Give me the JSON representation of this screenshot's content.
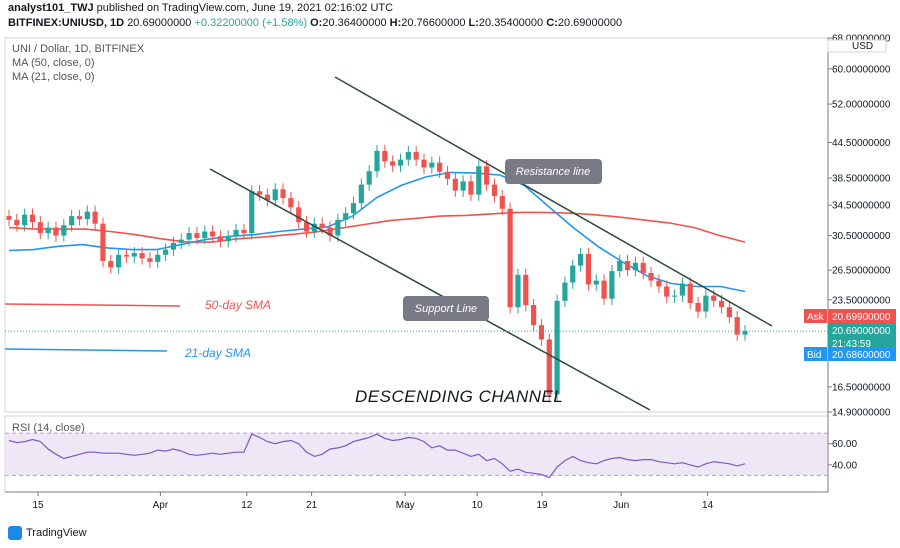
{
  "header": {
    "author": "analyst101_TWJ",
    "published": "published on TradingView.com, June 19, 2021 02:16:02 UTC",
    "symbol": "BITFINEX:UNIUSD, 1D",
    "last": "20.69000000",
    "change": "+0.32200000 (+1.58%)",
    "ohlc_o_label": "O:",
    "ohlc_o": "20.36400000",
    "ohlc_h_label": "H:",
    "ohlc_h": "20.76600000",
    "ohlc_l_label": "L:",
    "ohlc_l": "20.35400000",
    "ohlc_c_label": "C:",
    "ohlc_c": "20.69000000"
  },
  "legend": {
    "title": "UNI / Dollar, 1D, BITFINEX",
    "ma50": "MA (50, close, 0)",
    "ma21": "MA (21, close, 0)",
    "rsi": "RSI (14, close)"
  },
  "annotations": {
    "resistance": "Resistance line",
    "support": "Support Line",
    "sma50": "50-day SMA",
    "sma21": "21-day SMA",
    "channel": "DESCENDING CHANNEL"
  },
  "price_tags": {
    "ask_label": "Ask",
    "ask": "20.69900000",
    "last": "20.69000000",
    "countdown": "21:43:59",
    "bid_label": "Bid",
    "bid": "20.68600000",
    "currency": "USD"
  },
  "footer": {
    "brand": "TradingView"
  },
  "colors": {
    "up": "#26a69a",
    "down": "#ef5350",
    "ma50": "#ef5350",
    "ma21": "#2196f3",
    "rsi": "#7e57c2",
    "channel": "#2e4a3e",
    "bid": "#2196f3"
  },
  "chart_data": {
    "type": "candlestick",
    "y_scale": "log",
    "ylim": [
      14.9,
      68.0
    ],
    "yticks": [
      "68.00000000",
      "60.00000000",
      "52.00000000",
      "44.50000000",
      "38.50000000",
      "34.50000000",
      "30.50000000",
      "26.50000000",
      "23.50000000",
      "16.50000000",
      "14.90000000"
    ],
    "xticks": [
      "15",
      "Apr",
      "12",
      "21",
      "May",
      "10",
      "19",
      "Jun",
      "14"
    ],
    "candles": [
      [
        33.0,
        32.5
      ],
      [
        32.5,
        31.8
      ],
      [
        31.8,
        33.2
      ],
      [
        33.2,
        32.2
      ],
      [
        32.2,
        30.8
      ],
      [
        30.8,
        31.5
      ],
      [
        31.5,
        30.5
      ],
      [
        30.5,
        31.8
      ],
      [
        31.8,
        33.0
      ],
      [
        33.0,
        32.6
      ],
      [
        32.6,
        33.6
      ],
      [
        33.6,
        32.0
      ],
      [
        32.0,
        27.5
      ],
      [
        27.5,
        26.8
      ],
      [
        26.8,
        28.2
      ],
      [
        28.2,
        28.0
      ],
      [
        28.0,
        28.4
      ],
      [
        28.4,
        27.8
      ],
      [
        27.8,
        27.4
      ],
      [
        27.4,
        28.2
      ],
      [
        28.2,
        28.8
      ],
      [
        28.8,
        29.6
      ],
      [
        29.6,
        30.0
      ],
      [
        30.0,
        30.8
      ],
      [
        30.8,
        30.2
      ],
      [
        30.2,
        31.0
      ],
      [
        31.0,
        30.4
      ],
      [
        30.4,
        29.8
      ],
      [
        29.8,
        30.4
      ],
      [
        30.4,
        31.2
      ],
      [
        31.2,
        30.8
      ],
      [
        30.8,
        36.5
      ],
      [
        36.5,
        36.0
      ],
      [
        36.0,
        35.2
      ],
      [
        35.2,
        36.8
      ],
      [
        36.8,
        35.5
      ],
      [
        35.5,
        34.2
      ],
      [
        34.2,
        32.2
      ],
      [
        32.2,
        31.0
      ],
      [
        31.0,
        32.0
      ],
      [
        32.0,
        31.5
      ],
      [
        31.5,
        30.5
      ],
      [
        30.5,
        32.5
      ],
      [
        32.5,
        33.4
      ],
      [
        33.4,
        34.8
      ],
      [
        34.8,
        37.5
      ],
      [
        37.5,
        39.6
      ],
      [
        39.6,
        43.0
      ],
      [
        43.0,
        41.2
      ],
      [
        41.2,
        40.5
      ],
      [
        40.5,
        41.5
      ],
      [
        41.5,
        42.8
      ],
      [
        42.8,
        41.5
      ],
      [
        41.5,
        40.2
      ],
      [
        40.2,
        41.0
      ],
      [
        41.0,
        39.5
      ],
      [
        39.5,
        38.4
      ],
      [
        38.4,
        36.6
      ],
      [
        36.6,
        38.0
      ],
      [
        38.0,
        36.0
      ],
      [
        36.0,
        40.4
      ],
      [
        40.4,
        37.5
      ],
      [
        37.5,
        35.8
      ],
      [
        35.8,
        34.0
      ],
      [
        34.0,
        22.8
      ],
      [
        22.8,
        26.0
      ],
      [
        26.0,
        23.0
      ],
      [
        23.0,
        21.2
      ],
      [
        21.2,
        20.0
      ],
      [
        20.0,
        16.0
      ],
      [
        16.0,
        23.4
      ],
      [
        23.4,
        25.2
      ],
      [
        25.2,
        27.0
      ],
      [
        27.0,
        28.3
      ],
      [
        28.3,
        25.0
      ],
      [
        25.0,
        25.4
      ],
      [
        25.4,
        23.6
      ],
      [
        23.6,
        26.4
      ],
      [
        26.4,
        27.5
      ],
      [
        27.5,
        26.5
      ],
      [
        26.5,
        27.3
      ],
      [
        27.3,
        26.2
      ],
      [
        26.2,
        25.4
      ],
      [
        25.4,
        24.8
      ],
      [
        24.8,
        23.8
      ],
      [
        23.8,
        23.9
      ],
      [
        23.9,
        25.1
      ],
      [
        25.1,
        23.2
      ],
      [
        23.2,
        22.4
      ],
      [
        22.4,
        23.9
      ],
      [
        23.9,
        23.4
      ],
      [
        23.4,
        22.8
      ],
      [
        22.8,
        21.9
      ],
      [
        21.9,
        20.4
      ],
      [
        20.4,
        20.69
      ]
    ],
    "ma50": [
      31.5,
      31.3,
      31.3,
      31.3,
      31.0,
      30.6,
      30.1,
      29.7,
      29.7,
      30.1,
      30.3,
      30.6,
      30.9,
      31.4,
      31.9,
      32.4,
      32.7,
      33.0,
      33.1,
      33.3,
      33.5,
      33.5,
      33.4,
      33.2,
      32.9,
      32.5,
      32.1,
      31.5,
      30.5,
      29.7
    ],
    "ma21": [
      28.7,
      28.8,
      29.2,
      29.4,
      29.0,
      28.8,
      28.8,
      29.4,
      30.0,
      30.4,
      30.6,
      31.0,
      31.3,
      31.6,
      33.0,
      35.6,
      37.4,
      38.7,
      39.4,
      39.3,
      39.0,
      37.4,
      34.3,
      31.5,
      29.2,
      27.4,
      25.9,
      25.1,
      24.8,
      24.8,
      24.3
    ],
    "rsi_levels": [
      30,
      70
    ],
    "rsi_yticks": [
      "60.00",
      "40.00"
    ],
    "rsi": [
      63,
      61,
      62,
      64,
      62,
      55,
      50,
      46,
      48,
      50,
      52,
      52,
      51,
      51,
      51,
      50,
      49,
      50,
      51,
      54,
      53,
      55,
      53,
      50,
      49,
      50,
      51,
      50,
      51,
      52,
      52,
      69,
      66,
      62,
      60,
      62,
      63,
      60,
      52,
      48,
      50,
      55,
      56,
      58,
      62,
      64,
      66,
      69,
      65,
      63,
      64,
      66,
      65,
      62,
      56,
      58,
      54,
      54,
      51,
      48,
      50,
      44,
      46,
      41,
      34,
      36,
      33,
      32,
      31,
      28,
      38,
      44,
      48,
      44,
      42,
      41,
      44,
      46,
      47,
      45,
      44,
      45,
      45,
      43,
      42,
      41,
      42,
      40,
      38,
      41,
      43,
      42,
      41,
      39,
      41
    ]
  }
}
